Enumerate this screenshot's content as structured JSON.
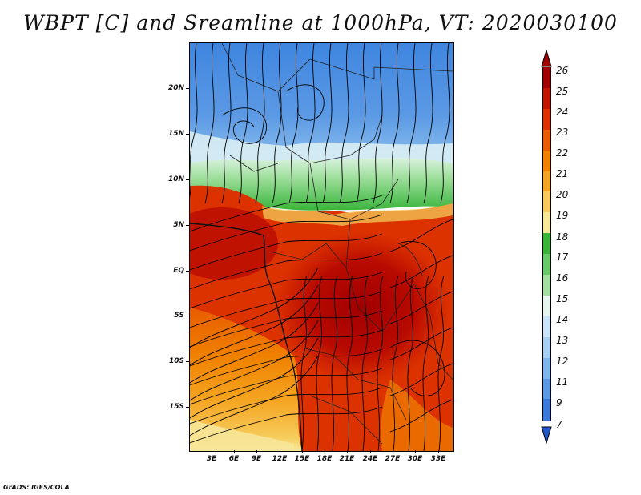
{
  "title": "WBPT [C] and Sreamline at 1000hPa, VT: 2020030100",
  "credit": "GrADS: IGES/COLA",
  "map": {
    "variable": "Wet-bulb potential temperature",
    "units": "C",
    "level": "1000hPa",
    "valid_time": "2020030100",
    "lat_labels": [
      "20N",
      "15N",
      "10N",
      "5N",
      "EQ",
      "5S",
      "10S",
      "15S"
    ],
    "lon_labels": [
      "3E",
      "6E",
      "9E",
      "12E",
      "15E",
      "18E",
      "21E",
      "24E",
      "27E",
      "30E",
      "33E"
    ]
  },
  "colorbar": {
    "labels": [
      "26",
      "25",
      "24",
      "23",
      "22",
      "21",
      "20",
      "19",
      "18",
      "17",
      "16",
      "15",
      "14",
      "13",
      "12",
      "11",
      "9",
      "7"
    ],
    "colors": [
      "#a00000",
      "#c01400",
      "#dc3200",
      "#e85c00",
      "#f08200",
      "#f5a522",
      "#f6cb5a",
      "#f7e698",
      "#3bb43b",
      "#68c968",
      "#a3e0a0",
      "#e6f6ee",
      "#c9e4f8",
      "#a7cff2",
      "#7eb5ec",
      "#5b99e4",
      "#3a79da",
      "#1e58c8"
    ]
  }
}
